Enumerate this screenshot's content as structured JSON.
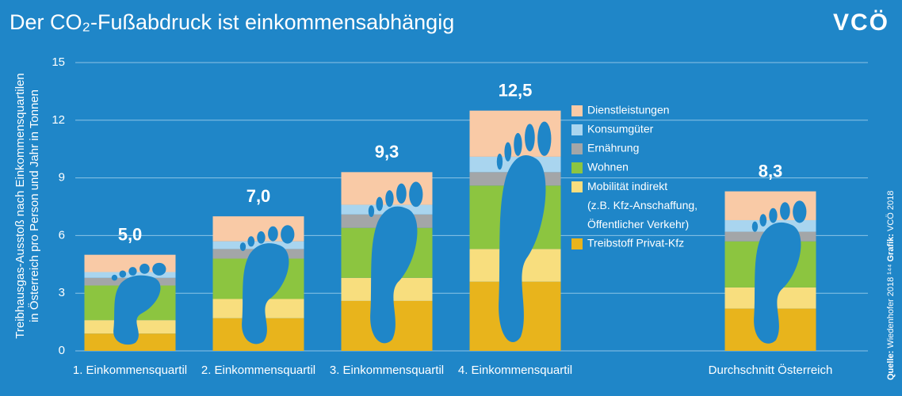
{
  "chart_data": {
    "type": "stacked_bar",
    "title": "Der CO₂-Fußabdruck ist einkommensabhängig",
    "logo": "VCÖ",
    "y_label": [
      "Treibhausgas-Ausstoß nach Einkommensquartilen",
      "in Österreich pro Person und Jahr in Tonnen"
    ],
    "source": [
      "Quelle:",
      " Wiedenhofer 2018 ¹⁴⁴ ",
      "Grafik:",
      " VCÖ 2018"
    ],
    "categories": [
      "1. Einkommensquartil",
      "2. Einkommensquartil",
      "3. Einkommensquartil",
      "4. Einkommensquartil",
      "Durchschnitt Österreich"
    ],
    "series": [
      {
        "name": "Treibstoff Privat-Kfz",
        "color": "#e8b41c",
        "values": [
          0.9,
          1.7,
          2.6,
          3.6,
          2.2
        ]
      },
      {
        "name": "Mobilität indirekt\n(z.B. Kfz-Anschaffung,\nÖffentlicher Verkehr)",
        "color": "#f8de7e",
        "values": [
          0.7,
          1.0,
          1.2,
          1.7,
          1.1
        ]
      },
      {
        "name": "Wohnen",
        "color": "#8cc540",
        "values": [
          1.8,
          2.1,
          2.6,
          3.3,
          2.4
        ]
      },
      {
        "name": "Ernährung",
        "color": "#a3a6a8",
        "values": [
          0.4,
          0.5,
          0.7,
          0.7,
          0.5
        ]
      },
      {
        "name": "Konsumgüter",
        "color": "#a9d5ef",
        "values": [
          0.3,
          0.4,
          0.5,
          0.8,
          0.6
        ]
      },
      {
        "name": "Dienstleistungen",
        "color": "#f9caa6",
        "values": [
          0.9,
          1.3,
          1.7,
          2.4,
          1.5
        ]
      }
    ],
    "totals": [
      5.0,
      7.0,
      9.3,
      12.5,
      8.3
    ],
    "total_labels": [
      "5,0",
      "7,0",
      "9,3",
      "12,5",
      "8,3"
    ],
    "ylim": [
      0,
      15
    ],
    "yticks": [
      0,
      3,
      6,
      9,
      12,
      15
    ],
    "grid": true
  }
}
